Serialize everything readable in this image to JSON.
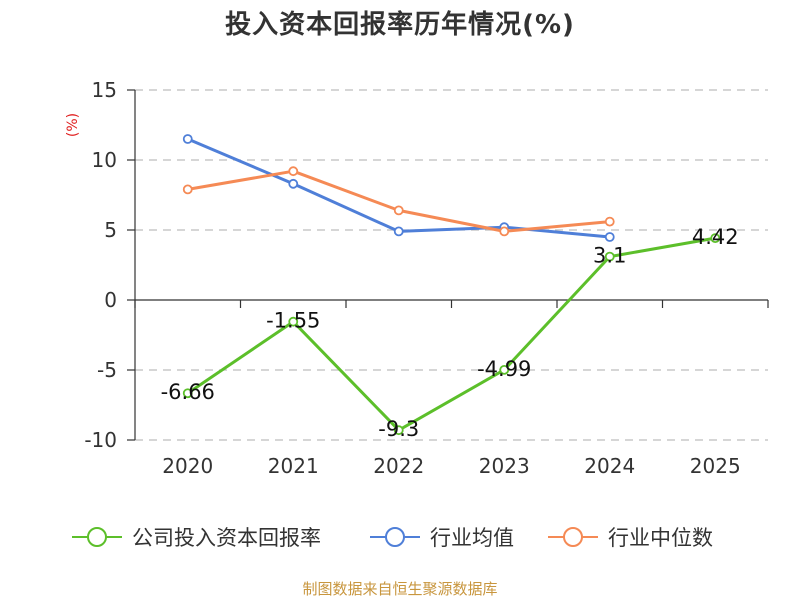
{
  "title": "投入资本回报率历年情况(%)",
  "source": "制图数据来自恒生聚源数据库",
  "chart_data": {
    "type": "line",
    "title": "投入资本回报率历年情况(%)",
    "ylabel": "(%)",
    "xlabel": "",
    "x": [
      "2020",
      "2021",
      "2022",
      "2023",
      "2024",
      "2025"
    ],
    "ylim": [
      -10,
      15
    ],
    "yticks": [
      15,
      10,
      5,
      0,
      -5,
      -10
    ],
    "grid": true,
    "legend_position": "bottom",
    "series": [
      {
        "name": "公司投入资本回报率",
        "color": "#5cbf2a",
        "values": [
          -6.66,
          -1.55,
          -9.3,
          -4.99,
          3.1,
          4.42
        ],
        "labels": [
          "-6.66",
          "-1.55",
          "-9.3",
          "-4.99",
          "3.1",
          "4.42"
        ]
      },
      {
        "name": "行业均值",
        "color": "#4f7fd8",
        "values": [
          11.5,
          8.3,
          4.9,
          5.2,
          4.5,
          null
        ]
      },
      {
        "name": "行业中位数",
        "color": "#f58a55",
        "values": [
          7.9,
          9.2,
          6.4,
          4.9,
          5.6,
          null
        ]
      }
    ]
  }
}
